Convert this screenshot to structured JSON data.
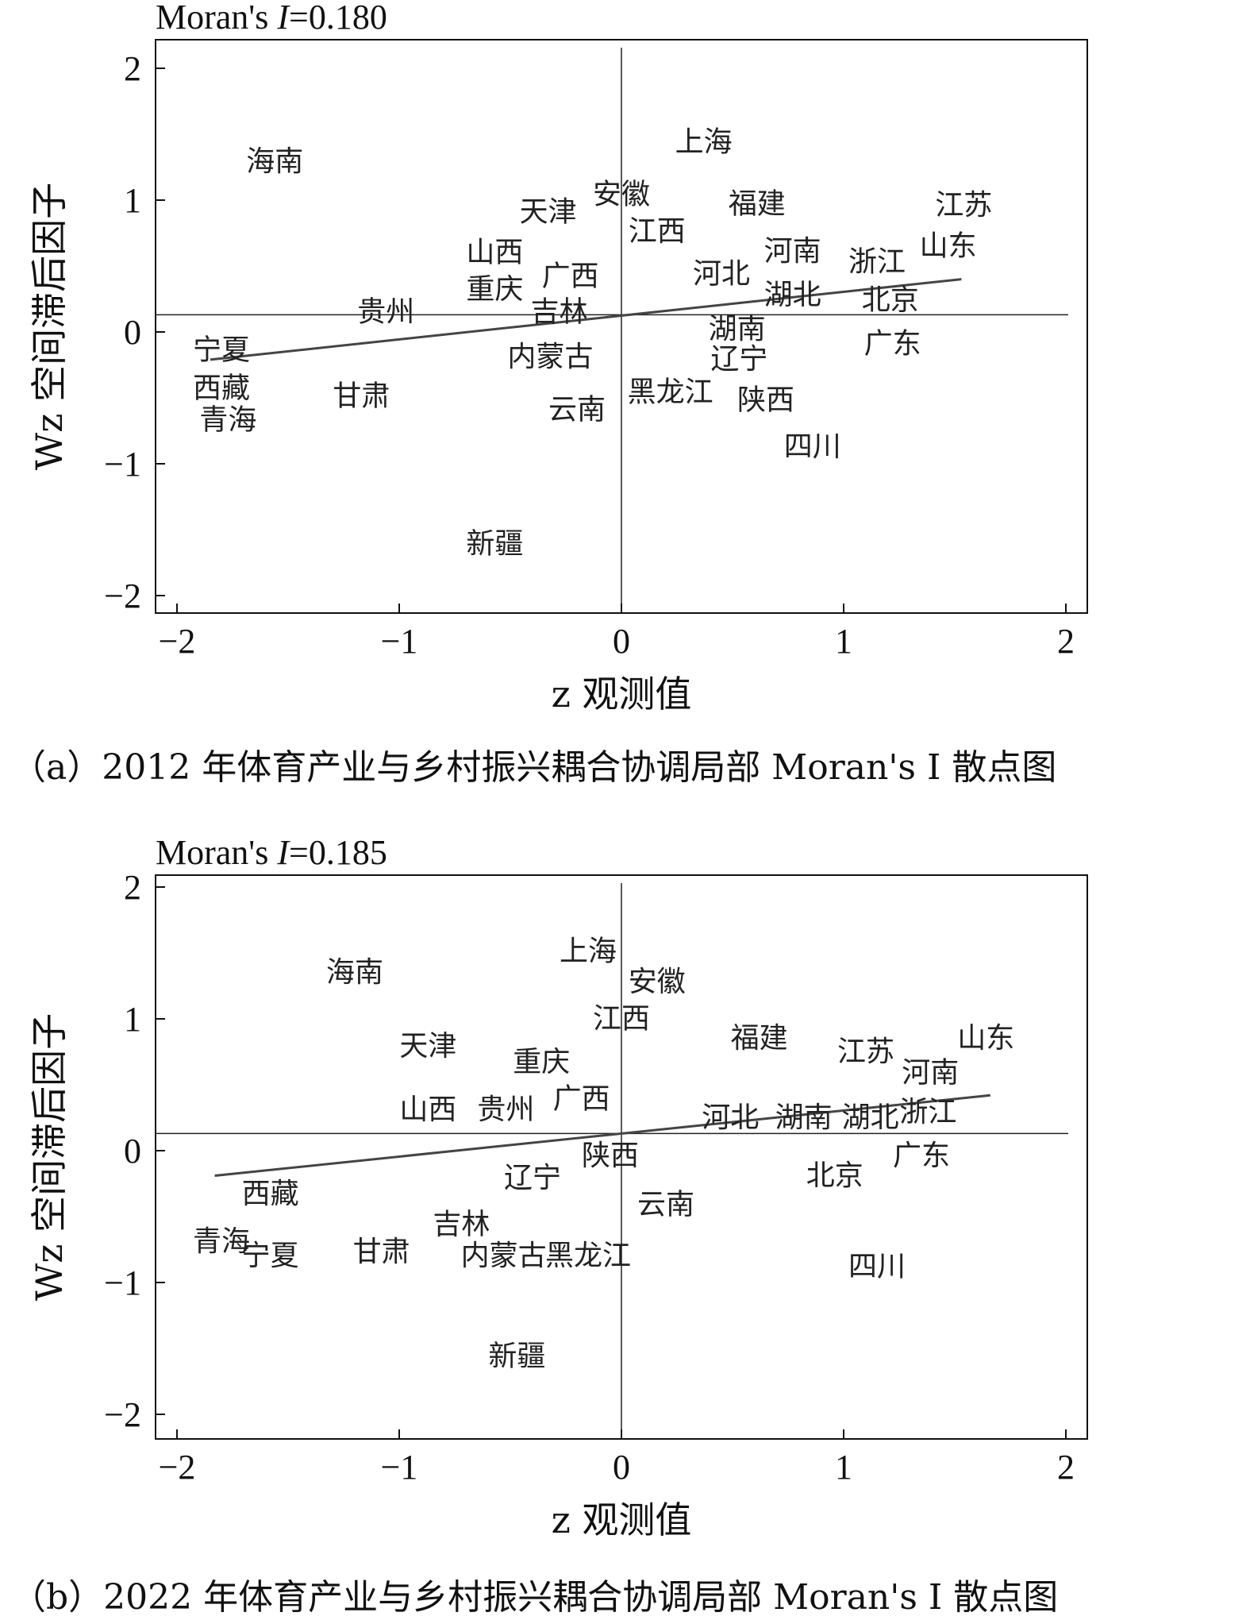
{
  "chart_data": [
    {
      "type": "scatter",
      "title": "Moran's I=0.180",
      "title_parts": {
        "prefix": "Moran's ",
        "italic": "I",
        "suffix": "=0.180"
      },
      "caption": "（a）2012 年体育产业与乡村振兴耦合协调局部 Moran's I 散点图",
      "xlabel": "z 观测值",
      "ylabel": "Wz 空间滞后因子",
      "xlim": [
        -2.1,
        2.1
      ],
      "ylim": [
        -2.1,
        2.1
      ],
      "xticks": [
        -2,
        -1,
        0,
        1,
        2
      ],
      "yticks": [
        -2,
        -1,
        0,
        1,
        2
      ],
      "xtick_labels": [
        "−2",
        "−1",
        "0",
        "1",
        "2"
      ],
      "ytick_labels": [
        "−2",
        "−1",
        "0",
        "1",
        "2"
      ],
      "hline_y": 0.13,
      "vline_x": 0,
      "fit_line": {
        "x": [
          -1.85,
          1.53
        ],
        "y": [
          -0.21,
          0.4
        ]
      },
      "points": [
        {
          "label": "上海",
          "x": 0.37,
          "y": 1.45
        },
        {
          "label": "海南",
          "x": -1.56,
          "y": 1.3
        },
        {
          "label": "安徽",
          "x": 0.0,
          "y": 1.05
        },
        {
          "label": "天津",
          "x": -0.33,
          "y": 0.92
        },
        {
          "label": "福建",
          "x": 0.61,
          "y": 0.98
        },
        {
          "label": "江苏",
          "x": 1.54,
          "y": 0.97
        },
        {
          "label": "江西",
          "x": 0.16,
          "y": 0.77
        },
        {
          "label": "山东",
          "x": 1.47,
          "y": 0.66
        },
        {
          "label": "山西",
          "x": -0.57,
          "y": 0.61
        },
        {
          "label": "河南",
          "x": 0.77,
          "y": 0.62
        },
        {
          "label": "浙江",
          "x": 1.15,
          "y": 0.54
        },
        {
          "label": "广西",
          "x": -0.23,
          "y": 0.43
        },
        {
          "label": "重庆",
          "x": -0.57,
          "y": 0.33
        },
        {
          "label": "河北",
          "x": 0.45,
          "y": 0.45
        },
        {
          "label": "湖北",
          "x": 0.77,
          "y": 0.29
        },
        {
          "label": "北京",
          "x": 1.21,
          "y": 0.25
        },
        {
          "label": "贵州",
          "x": -1.06,
          "y": 0.16
        },
        {
          "label": "吉林",
          "x": -0.28,
          "y": 0.16
        },
        {
          "label": "湖南",
          "x": 0.52,
          "y": 0.03
        },
        {
          "label": "宁夏",
          "x": -1.8,
          "y": -0.13
        },
        {
          "label": "广东",
          "x": 1.22,
          "y": -0.08
        },
        {
          "label": "内蒙古",
          "x": -0.32,
          "y": -0.18
        },
        {
          "label": "辽宁",
          "x": 0.53,
          "y": -0.2
        },
        {
          "label": "西藏",
          "x": -1.8,
          "y": -0.42
        },
        {
          "label": "甘肃",
          "x": -1.17,
          "y": -0.48
        },
        {
          "label": "黑龙江",
          "x": 0.22,
          "y": -0.45
        },
        {
          "label": "陕西",
          "x": 0.65,
          "y": -0.51
        },
        {
          "label": "云南",
          "x": -0.2,
          "y": -0.58
        },
        {
          "label": "青海",
          "x": -1.77,
          "y": -0.66
        },
        {
          "label": "四川",
          "x": 0.86,
          "y": -0.86
        },
        {
          "label": "新疆",
          "x": -0.57,
          "y": -1.6
        }
      ]
    },
    {
      "type": "scatter",
      "title": "Moran's I=0.185",
      "title_parts": {
        "prefix": "Moran's ",
        "italic": "I",
        "suffix": "=0.185"
      },
      "caption": "（b）2022 年体育产业与乡村振兴耦合协调局部 Moran's I 散点图",
      "xlabel": "z 观测值",
      "ylabel": "Wz 空间滞后因子",
      "xlim": [
        -2.1,
        2.1
      ],
      "ylim": [
        -2.1,
        2.1
      ],
      "xticks": [
        -2,
        -1,
        0,
        1,
        2
      ],
      "yticks": [
        -2,
        -1,
        0,
        1,
        2
      ],
      "xtick_labels": [
        "−2",
        "−1",
        "0",
        "1",
        "2"
      ],
      "ytick_labels": [
        "−2",
        "−1",
        "0",
        "1",
        "2"
      ],
      "hline_y": 0.13,
      "vline_x": 0,
      "fit_line": {
        "x": [
          -1.83,
          1.66
        ],
        "y": [
          -0.19,
          0.42
        ]
      },
      "points": [
        {
          "label": "上海",
          "x": -0.15,
          "y": 1.52
        },
        {
          "label": "海南",
          "x": -1.2,
          "y": 1.36
        },
        {
          "label": "安徽",
          "x": 0.16,
          "y": 1.29
        },
        {
          "label": "江西",
          "x": 0.0,
          "y": 1.01
        },
        {
          "label": "福建",
          "x": 0.62,
          "y": 0.86
        },
        {
          "label": "山东",
          "x": 1.64,
          "y": 0.86
        },
        {
          "label": "天津",
          "x": -0.87,
          "y": 0.8
        },
        {
          "label": "江苏",
          "x": 1.1,
          "y": 0.76
        },
        {
          "label": "重庆",
          "x": -0.36,
          "y": 0.68
        },
        {
          "label": "河南",
          "x": 1.39,
          "y": 0.6
        },
        {
          "label": "广西",
          "x": -0.18,
          "y": 0.4
        },
        {
          "label": "山西",
          "x": -0.87,
          "y": 0.32
        },
        {
          "label": "贵州",
          "x": -0.52,
          "y": 0.32
        },
        {
          "label": "河北",
          "x": 0.49,
          "y": 0.26
        },
        {
          "label": "湖南",
          "x": 0.82,
          "y": 0.26
        },
        {
          "label": "湖北",
          "x": 1.12,
          "y": 0.26
        },
        {
          "label": "浙江",
          "x": 1.38,
          "y": 0.3
        },
        {
          "label": "陕西",
          "x": -0.05,
          "y": -0.03
        },
        {
          "label": "广东",
          "x": 1.35,
          "y": -0.03
        },
        {
          "label": "北京",
          "x": 0.96,
          "y": -0.18
        },
        {
          "label": "辽宁",
          "x": -0.4,
          "y": -0.2
        },
        {
          "label": "西藏",
          "x": -1.58,
          "y": -0.32
        },
        {
          "label": "云南",
          "x": 0.2,
          "y": -0.4
        },
        {
          "label": "吉林",
          "x": -0.72,
          "y": -0.55
        },
        {
          "label": "青海",
          "x": -1.8,
          "y": -0.68
        },
        {
          "label": "宁夏",
          "x": -1.58,
          "y": -0.79
        },
        {
          "label": "甘肃",
          "x": -1.08,
          "y": -0.76
        },
        {
          "label": "内蒙古",
          "x": -0.53,
          "y": -0.79
        },
        {
          "label": "黑龙江",
          "x": -0.15,
          "y": -0.79
        },
        {
          "label": "四川",
          "x": 1.15,
          "y": -0.87
        },
        {
          "label": "新疆",
          "x": -0.47,
          "y": -1.55
        }
      ]
    }
  ]
}
